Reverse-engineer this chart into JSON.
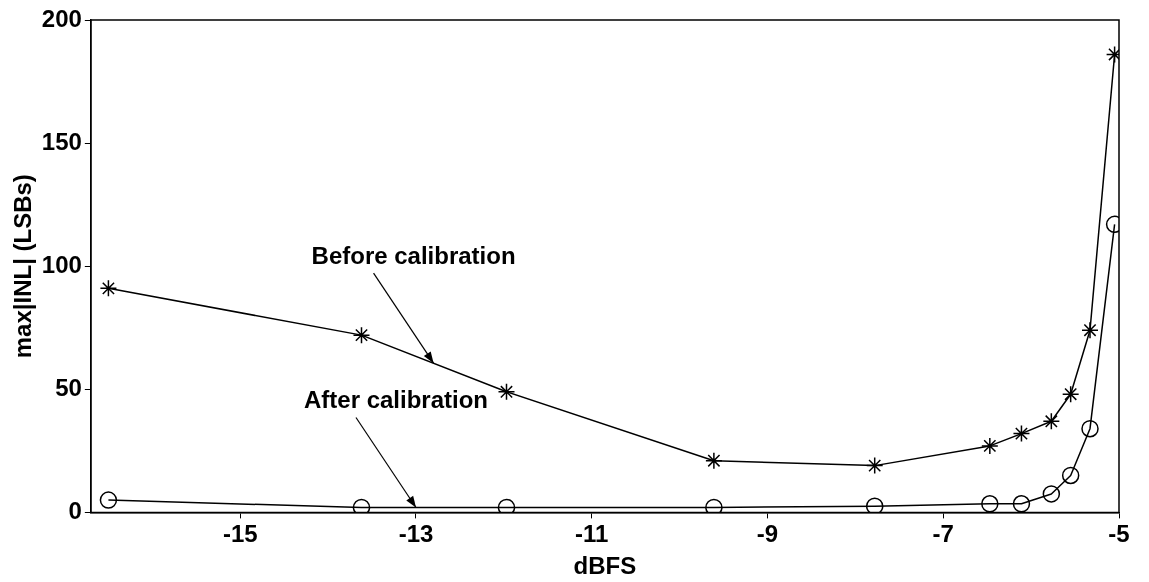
{
  "chart_data": {
    "type": "line",
    "xlabel": "dBFS",
    "ylabel": "max|INL| (LSBs)",
    "xlim": [
      -16.7,
      -5
    ],
    "xticks": [
      -15,
      -13,
      -11,
      -9,
      -7,
      -5
    ],
    "ylim": [
      0,
      200
    ],
    "yticks": [
      0,
      50,
      100,
      150,
      200
    ],
    "grid": false,
    "legend": false,
    "series": [
      {
        "color": "#000000",
        "marker": "cross",
        "x": [
          -16.5,
          -13.62,
          -11.97,
          -9.61,
          -7.78,
          -6.47,
          -6.11,
          -5.77,
          -5.55,
          -5.33,
          -5.05
        ],
        "values": [
          91,
          72,
          49,
          21,
          19,
          27,
          32,
          37,
          48,
          74,
          186
        ]
      },
      {
        "color": "#000000",
        "marker": "circle",
        "x": [
          -16.5,
          -13.62,
          -11.97,
          -9.61,
          -7.78,
          -6.47,
          -6.11,
          -5.77,
          -5.55,
          -5.33,
          -5.05
        ],
        "values": [
          5,
          2,
          2,
          2,
          2.5,
          3.5,
          3.5,
          7.5,
          15,
          34,
          117
        ]
      }
    ],
    "annotations": [
      {
        "text": "Before calibration",
        "x": -12.8,
        "y": 60.6
      },
      {
        "text": "After calibration",
        "x": -13,
        "y": 2
      }
    ]
  }
}
